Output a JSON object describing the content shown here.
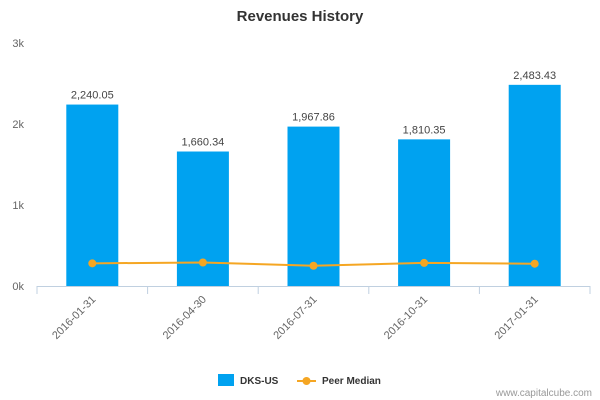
{
  "chart_data": {
    "type": "bar",
    "title": "Revenues History",
    "categories": [
      "2016-01-31",
      "2016-04-30",
      "2016-07-31",
      "2016-10-31",
      "2017-01-31"
    ],
    "series": [
      {
        "name": "DKS-US",
        "type": "bar",
        "color": "#00a2f0",
        "values": [
          2240.05,
          1660.34,
          1967.86,
          1810.35,
          2483.43
        ],
        "labels": [
          "2,240.05",
          "1,660.34",
          "1,967.86",
          "1,810.35",
          "2,483.43"
        ]
      },
      {
        "name": "Peer Median",
        "type": "line",
        "color": "#f5a623",
        "values": [
          280,
          290,
          250,
          285,
          275
        ]
      }
    ],
    "ylim": [
      0,
      3000
    ],
    "yticks": [
      {
        "value": 0,
        "label": "0k"
      },
      {
        "value": 1000,
        "label": "1k"
      },
      {
        "value": 2000,
        "label": "2k"
      },
      {
        "value": 3000,
        "label": "3k"
      }
    ],
    "grid": false,
    "legend": "bottom-center",
    "xlabel": "",
    "ylabel": ""
  },
  "credit": "www.capitalcube.com"
}
